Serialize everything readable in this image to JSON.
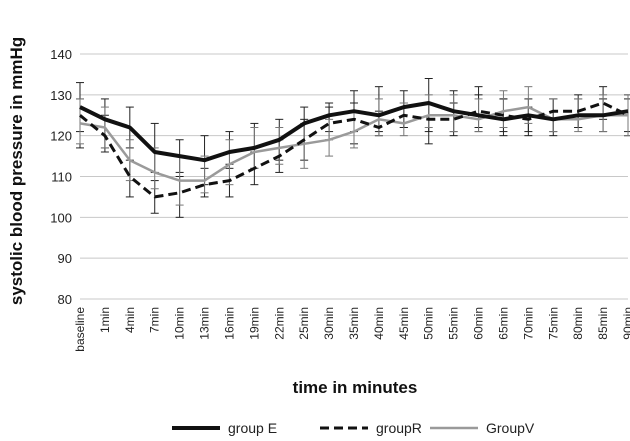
{
  "chart_data": {
    "type": "line",
    "title": "",
    "xlabel": "time in minutes",
    "ylabel": "systolic blood pressure in mmHg",
    "ylim": [
      80,
      140
    ],
    "yticks": [
      80,
      90,
      100,
      110,
      120,
      130,
      140
    ],
    "grid": true,
    "legend_position": "bottom",
    "categories": [
      "baseline",
      "1min",
      "4min",
      "7min",
      "10min",
      "13min",
      "16min",
      "19min",
      "22min",
      "25min",
      "30min",
      "35min",
      "40min",
      "45min",
      "50min",
      "55min",
      "60min",
      "65min",
      "70min",
      "75min",
      "80min",
      "85min",
      "90min"
    ],
    "series": [
      {
        "name": "group E",
        "style": "solid",
        "color": "#111111",
        "width": 4,
        "values": [
          127,
          124,
          122,
          116,
          115,
          114,
          116,
          117,
          119,
          123,
          125,
          126,
          125,
          127,
          128,
          126,
          125,
          124,
          125,
          124,
          125,
          125,
          126
        ],
        "error_low": [
          10,
          7,
          5,
          5,
          4,
          6,
          4,
          5,
          5,
          5,
          4,
          5,
          4,
          5,
          7,
          5,
          4,
          4,
          4,
          4,
          3,
          4,
          6
        ],
        "error_high": [
          6,
          5,
          5,
          7,
          4,
          6,
          5,
          6,
          5,
          4,
          3,
          5,
          7,
          4,
          6,
          5,
          7,
          5,
          4,
          5,
          5,
          4,
          4
        ]
      },
      {
        "name": "groupR",
        "style": "dashed",
        "color": "#111111",
        "width": 3,
        "values": [
          125,
          120,
          110,
          105,
          106,
          108,
          109,
          112,
          115,
          119,
          123,
          124,
          122,
          125,
          124,
          124,
          126,
          125,
          124,
          126,
          126,
          128,
          125
        ],
        "error_low": [
          4,
          4,
          5,
          4,
          6,
          3,
          4,
          4,
          4,
          5,
          4,
          6,
          2,
          3,
          6,
          4,
          4,
          4,
          4,
          5,
          4,
          4,
          4
        ],
        "error_high": [
          4,
          5,
          4,
          4,
          4,
          4,
          4,
          4,
          4,
          5,
          4,
          4,
          4,
          3,
          4,
          4,
          4,
          4,
          3,
          3,
          3,
          4,
          4
        ]
      },
      {
        "name": "GroupV",
        "style": "solid",
        "color": "#9a9a9a",
        "width": 2.5,
        "values": [
          123,
          122,
          114,
          111,
          109,
          109,
          113,
          116,
          117,
          118,
          119,
          121,
          124,
          123,
          125,
          125,
          124,
          126,
          127,
          124,
          124,
          125,
          125
        ],
        "error_low": [
          5,
          5,
          5,
          4,
          6,
          3,
          5,
          4,
          4,
          6,
          4,
          4,
          4,
          3,
          3,
          4,
          3,
          4,
          4,
          3,
          3,
          4,
          5
        ],
        "error_high": [
          6,
          5,
          5,
          6,
          6,
          6,
          6,
          6,
          5,
          5,
          5,
          5,
          5,
          5,
          5,
          5,
          5,
          5,
          5,
          5,
          5,
          5,
          5
        ]
      }
    ]
  }
}
